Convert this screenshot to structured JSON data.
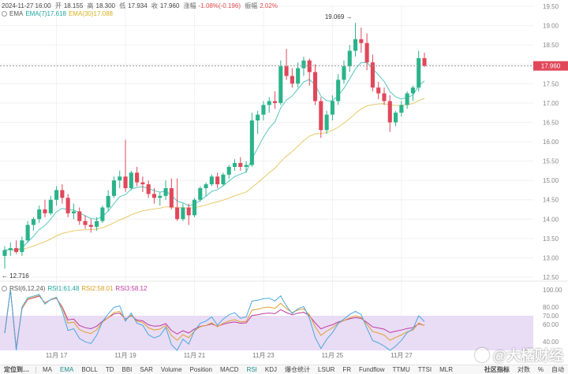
{
  "header": {
    "datetime": "2024-11-27 16:00",
    "open_label": "开",
    "open": "18.155",
    "high_label": "高",
    "high": "18.300",
    "low_label": "低",
    "low": "17.934",
    "close_label": "收",
    "close": "17.960",
    "change_label": "涨幅",
    "change": "-1.08%(-0.196)",
    "amp_label": "振幅",
    "amp": "2.02%"
  },
  "ema": {
    "label": "EMA",
    "ema7": "EMA(7)17.618",
    "ema30": "EMA(30)17.088"
  },
  "rsi": {
    "label": "RSI(6,12,24)",
    "rsi1": "RSI1:61.48",
    "rsi2": "RSI2:58.01",
    "rsi3": "RSI3:58.12"
  },
  "annotations": {
    "high_marker": "19.069",
    "low_marker": "12.716",
    "current_price": "17.960"
  },
  "price_axis": [
    "19.50",
    "19.00",
    "18.50",
    "18.00",
    "17.50",
    "17.00",
    "16.50",
    "16.00",
    "15.50",
    "15.00",
    "14.50",
    "14.00",
    "13.50",
    "13.00",
    "12.50"
  ],
  "rsi_axis": [
    "100.00",
    "80.00",
    "70.00",
    "60.00",
    "40.00"
  ],
  "date_axis": [
    "11月 17",
    "11月 19",
    "11月 21",
    "11月 23",
    "11月 25",
    "11月 27"
  ],
  "chart_data": {
    "type": "candlestick",
    "interval": "4h",
    "ylim": [
      12.5,
      19.5
    ],
    "candles": [
      [
        13.05,
        13.3,
        12.72,
        13.2
      ],
      [
        13.2,
        13.4,
        13.05,
        13.25
      ],
      [
        13.25,
        13.45,
        13.1,
        13.15
      ],
      [
        13.15,
        13.55,
        13.05,
        13.45
      ],
      [
        13.45,
        13.95,
        13.4,
        13.85
      ],
      [
        13.85,
        14.05,
        13.7,
        14.0
      ],
      [
        14.0,
        14.35,
        13.9,
        14.25
      ],
      [
        14.25,
        14.5,
        14.05,
        14.15
      ],
      [
        14.15,
        14.6,
        14.1,
        14.5
      ],
      [
        14.5,
        14.85,
        14.35,
        14.75
      ],
      [
        14.75,
        14.9,
        14.4,
        14.55
      ],
      [
        14.55,
        14.65,
        14.05,
        14.15
      ],
      [
        14.15,
        14.4,
        14.0,
        14.2
      ],
      [
        14.2,
        14.3,
        13.85,
        13.95
      ],
      [
        13.95,
        14.1,
        13.75,
        13.85
      ],
      [
        13.85,
        14.0,
        13.65,
        13.8
      ],
      [
        13.8,
        14.05,
        13.7,
        13.95
      ],
      [
        13.95,
        14.35,
        13.9,
        14.3
      ],
      [
        14.3,
        14.75,
        14.2,
        14.6
      ],
      [
        14.6,
        15.1,
        14.55,
        15.0
      ],
      [
        15.0,
        15.25,
        14.8,
        15.1
      ],
      [
        15.1,
        16.05,
        14.7,
        14.8
      ],
      [
        14.8,
        15.25,
        14.75,
        15.2
      ],
      [
        15.2,
        15.35,
        14.85,
        14.95
      ],
      [
        14.95,
        15.1,
        14.7,
        14.9
      ],
      [
        14.9,
        15.0,
        14.55,
        14.65
      ],
      [
        14.65,
        14.8,
        14.4,
        14.55
      ],
      [
        14.55,
        14.7,
        14.35,
        14.6
      ],
      [
        14.6,
        15.0,
        14.5,
        14.8
      ],
      [
        14.8,
        15.05,
        14.25,
        14.3
      ],
      [
        14.3,
        15.05,
        13.95,
        14.0
      ],
      [
        14.0,
        14.4,
        13.95,
        14.3
      ],
      [
        14.3,
        14.4,
        13.85,
        14.1
      ],
      [
        14.1,
        14.55,
        14.05,
        14.5
      ],
      [
        14.5,
        14.85,
        14.45,
        14.8
      ],
      [
        14.8,
        14.95,
        14.6,
        14.9
      ],
      [
        14.9,
        15.15,
        14.85,
        15.1
      ],
      [
        15.1,
        15.2,
        14.8,
        14.9
      ],
      [
        14.9,
        15.2,
        14.85,
        15.15
      ],
      [
        15.15,
        15.4,
        15.05,
        15.35
      ],
      [
        15.35,
        15.55,
        15.25,
        15.45
      ],
      [
        15.45,
        15.6,
        15.25,
        15.35
      ],
      [
        15.35,
        15.5,
        15.2,
        15.4
      ],
      [
        15.4,
        16.75,
        15.35,
        16.55
      ],
      [
        16.55,
        16.8,
        16.2,
        16.7
      ],
      [
        16.7,
        17.05,
        16.55,
        16.95
      ],
      [
        16.95,
        17.15,
        16.75,
        17.05
      ],
      [
        17.05,
        17.3,
        16.85,
        17.0
      ],
      [
        17.0,
        18.1,
        16.95,
        17.95
      ],
      [
        17.95,
        18.4,
        17.6,
        17.7
      ],
      [
        17.7,
        17.9,
        17.4,
        17.5
      ],
      [
        17.5,
        18.05,
        17.4,
        17.9
      ],
      [
        17.9,
        18.2,
        17.7,
        18.1
      ],
      [
        18.1,
        18.15,
        17.45,
        17.8
      ],
      [
        17.8,
        18.0,
        16.95,
        17.05
      ],
      [
        17.05,
        17.15,
        16.1,
        16.3
      ],
      [
        16.3,
        16.8,
        16.2,
        16.7
      ],
      [
        16.7,
        17.2,
        16.55,
        17.05
      ],
      [
        17.05,
        17.75,
        16.95,
        17.6
      ],
      [
        17.6,
        18.1,
        17.5,
        17.95
      ],
      [
        17.95,
        18.5,
        17.8,
        18.35
      ],
      [
        18.35,
        19.07,
        18.2,
        18.65
      ],
      [
        18.65,
        18.95,
        18.3,
        18.55
      ],
      [
        18.55,
        18.8,
        17.85,
        18.05
      ],
      [
        18.05,
        18.25,
        17.3,
        17.4
      ],
      [
        17.4,
        17.55,
        17.1,
        17.25
      ],
      [
        17.25,
        17.4,
        16.95,
        17.05
      ],
      [
        17.05,
        17.2,
        16.25,
        16.5
      ],
      [
        16.5,
        16.8,
        16.4,
        16.75
      ],
      [
        16.75,
        17.05,
        16.65,
        16.95
      ],
      [
        16.95,
        17.3,
        16.85,
        17.25
      ],
      [
        17.25,
        17.45,
        17.05,
        17.4
      ],
      [
        17.4,
        18.35,
        17.3,
        18.16
      ],
      [
        18.16,
        18.3,
        17.93,
        17.96
      ]
    ]
  }
}
